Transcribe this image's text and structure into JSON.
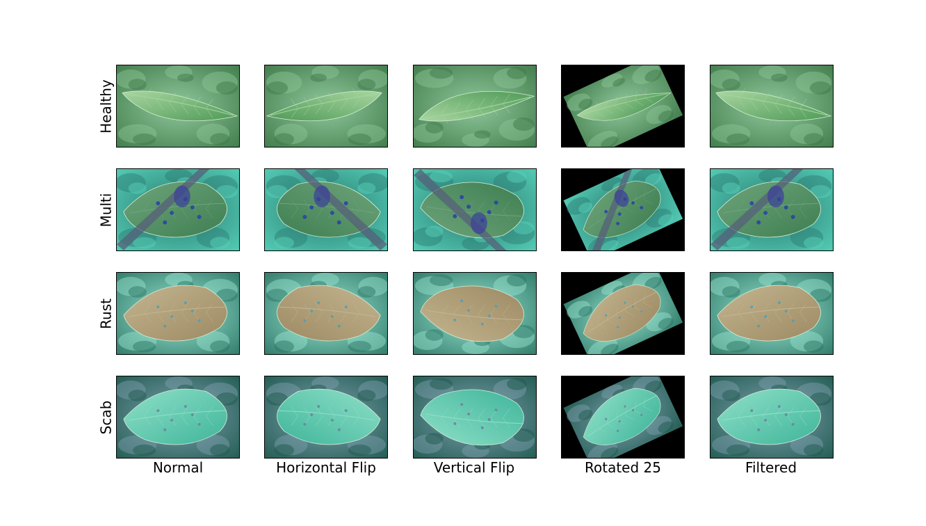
{
  "rows": [
    {
      "label": "Healthy",
      "bg": "#3f7a4a",
      "bg2": "#8fc79a",
      "leaf": "#4f9a58",
      "leaf2": "#a8d6a0",
      "spot": "#4f9a58"
    },
    {
      "label": "Multi",
      "bg": "#56d0b8",
      "bg2": "#2a7a70",
      "leaf": "#3e7f52",
      "leaf2": "#6fa47b",
      "spot": "#2840a8"
    },
    {
      "label": "Rust",
      "bg": "#2c7766",
      "bg2": "#9be6d2",
      "leaf": "#9c8a63",
      "leaf2": "#c4b590",
      "spot": "#4aa0b8"
    },
    {
      "label": "Scab",
      "bg": "#1f5a4f",
      "bg2": "#7fa0b0",
      "leaf": "#3fb59a",
      "leaf2": "#8fe0c8",
      "spot": "#6f7f9f"
    }
  ],
  "columns": [
    {
      "label": "Normal",
      "transform": "none"
    },
    {
      "label": "Horizontal Flip",
      "transform": "hflip"
    },
    {
      "label": "Vertical Flip",
      "transform": "vflip"
    },
    {
      "label": "Rotated 25",
      "transform": "rot25"
    },
    {
      "label": "Filtered",
      "transform": "none"
    }
  ]
}
